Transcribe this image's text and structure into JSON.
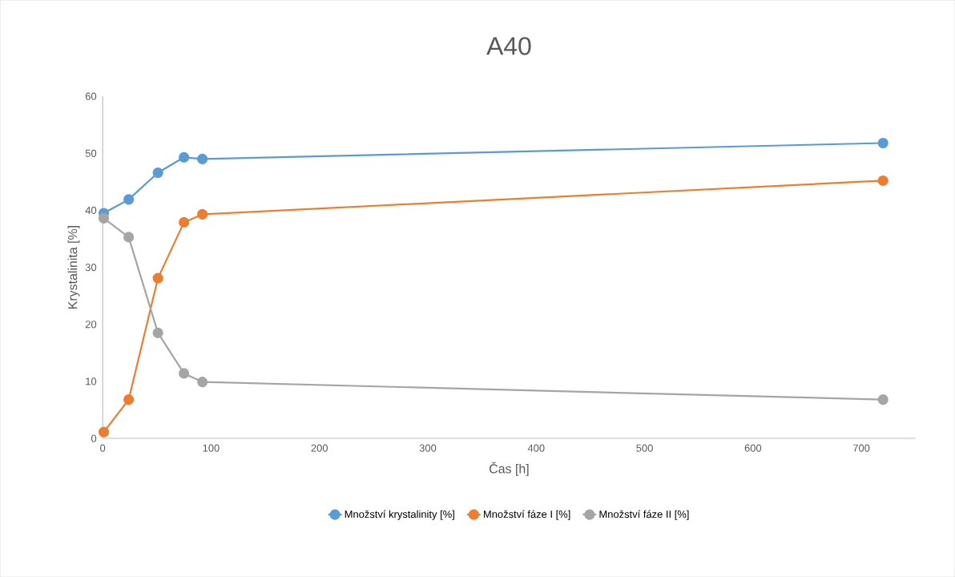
{
  "chart_data": {
    "type": "line",
    "title": "A40",
    "xlabel": "Čas [h]",
    "ylabel": "Krystalinita [%]",
    "x": [
      1,
      24,
      51,
      75,
      92,
      720
    ],
    "series": [
      {
        "name": "Množství krystalinity [%]",
        "color": "#5b9bd5",
        "values": [
          39.5,
          41.9,
          46.6,
          49.3,
          49.0,
          51.8
        ]
      },
      {
        "name": "Množství fáze I [%]",
        "color": "#ed7d31",
        "values": [
          1.1,
          6.8,
          28.1,
          37.9,
          39.3,
          45.2
        ]
      },
      {
        "name": "Množství fáze II [%]",
        "color": "#a5a5a5",
        "values": [
          38.6,
          35.3,
          18.5,
          11.4,
          9.9,
          6.8
        ]
      }
    ],
    "xlim": [
      0,
      750
    ],
    "xticks": [
      0,
      100,
      200,
      300,
      400,
      500,
      600,
      700
    ],
    "ylim": [
      0,
      60
    ],
    "yticks": [
      0,
      10,
      20,
      30,
      40,
      50,
      60
    ],
    "grid": false,
    "legend": "bottom",
    "marker": "circle",
    "line_style": "solid"
  }
}
